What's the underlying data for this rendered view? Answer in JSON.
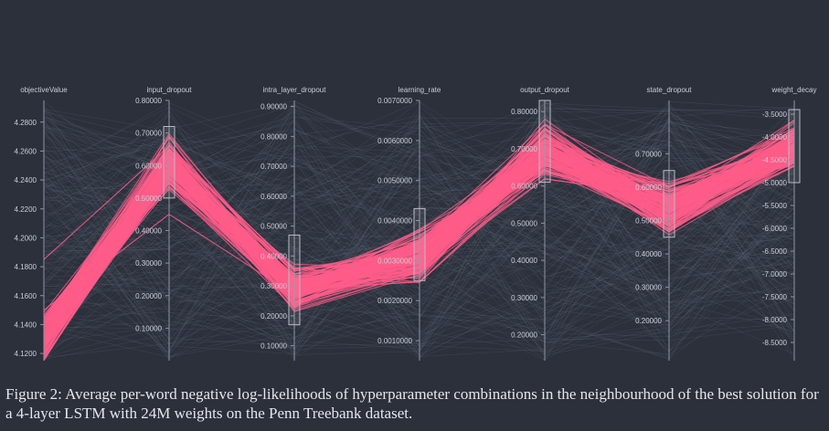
{
  "figure": {
    "caption": "Figure 2: Average per-word negative log-likelihoods of hyperparameter combinations in the neighbourhood of the best solution for a 4-layer LSTM with 24M weights on the Penn Treebank dataset."
  },
  "chart_data": {
    "type": "parallel_coordinates",
    "colors": {
      "background": "#2b303b",
      "axis": "#8c93a3",
      "highlight": "#ff5c8a",
      "context": "#646b7a"
    },
    "axes": [
      {
        "name": "objectiveValue",
        "range": [
          4.115,
          4.295
        ],
        "ticks": [
          "4.2800",
          "4.2600",
          "4.2400",
          "4.2200",
          "4.2000",
          "4.1800",
          "4.1600",
          "4.1400",
          "4.1200"
        ],
        "brush": null
      },
      {
        "name": "input_dropout",
        "range": [
          0.0,
          0.8
        ],
        "ticks": [
          "0.80000",
          "0.70000",
          "0.60000",
          "0.50000",
          "0.40000",
          "0.30000",
          "0.20000",
          "0.10000"
        ],
        "brush": [
          0.5,
          0.72
        ]
      },
      {
        "name": "intra_layer_dropout",
        "range": [
          0.05,
          0.92
        ],
        "ticks": [
          "0.90000",
          "0.80000",
          "0.70000",
          "0.60000",
          "0.50000",
          "0.40000",
          "0.30000",
          "0.20000",
          "0.10000"
        ],
        "brush": [
          0.17,
          0.47
        ]
      },
      {
        "name": "learning_rate",
        "range": [
          0.0005,
          0.007
        ],
        "ticks": [
          "0.0070000",
          "0.0060000",
          "0.0050000",
          "0.0040000",
          "0.0030000",
          "0.0020000",
          "0.0010000"
        ],
        "brush": [
          0.0025,
          0.0043
        ]
      },
      {
        "name": "output_dropout",
        "range": [
          0.13,
          0.83
        ],
        "ticks": [
          "0.80000",
          "0.70000",
          "0.60000",
          "0.50000",
          "0.40000",
          "0.30000",
          "0.20000"
        ],
        "brush": [
          0.61,
          0.83
        ]
      },
      {
        "name": "state_dropout",
        "range": [
          0.08,
          0.86
        ],
        "ticks": [
          "0.70000",
          "0.60000",
          "0.50000",
          "0.40000",
          "0.30000",
          "0.20000"
        ],
        "brush": [
          0.45,
          0.65
        ]
      },
      {
        "name": "weight_decay",
        "range": [
          -8.9,
          -3.2
        ],
        "ticks": [
          "-3.5000",
          "-4.0000",
          "-4.5000",
          "-5.0000",
          "-5.5000",
          "-6.0000",
          "-6.5000",
          "-7.0000",
          "-7.5000",
          "-8.0000",
          "-8.5000"
        ],
        "brush": [
          -5.0,
          -3.4
        ]
      }
    ],
    "highlighted_lines": 150,
    "context_lines": 200
  }
}
